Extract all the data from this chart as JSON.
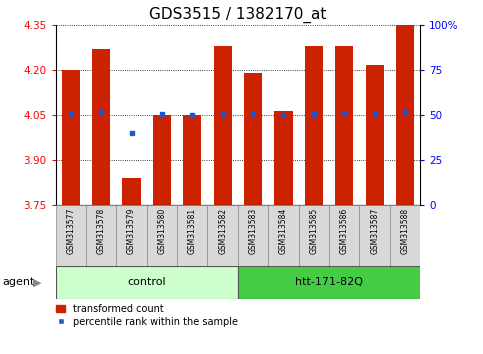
{
  "title": "GDS3515 / 1382170_at",
  "samples": [
    "GSM313577",
    "GSM313578",
    "GSM313579",
    "GSM313580",
    "GSM313581",
    "GSM313582",
    "GSM313583",
    "GSM313584",
    "GSM313585",
    "GSM313586",
    "GSM313587",
    "GSM313588"
  ],
  "bar_values": [
    4.2,
    4.27,
    3.84,
    4.05,
    4.05,
    4.28,
    4.19,
    4.065,
    4.28,
    4.28,
    4.215,
    4.35
  ],
  "percentile_values": [
    4.055,
    4.06,
    3.99,
    4.055,
    4.05,
    4.055,
    4.055,
    4.05,
    4.055,
    4.057,
    4.055,
    4.06
  ],
  "y_min": 3.75,
  "y_max": 4.35,
  "y_ticks": [
    3.75,
    3.9,
    4.05,
    4.2,
    4.35
  ],
  "right_y_ticks": [
    0,
    25,
    50,
    75,
    100
  ],
  "right_y_labels": [
    "0",
    "25",
    "50",
    "75",
    "100%"
  ],
  "bar_color": "#cc2200",
  "percentile_color": "#2255cc",
  "agent_groups": [
    {
      "label": "control",
      "start": 0,
      "end": 5,
      "color": "#ccffcc"
    },
    {
      "label": "htt-171-82Q",
      "start": 6,
      "end": 11,
      "color": "#44cc44"
    }
  ],
  "xlabel_agent": "agent",
  "legend_bar": "transformed count",
  "legend_pct": "percentile rank within the sample",
  "title_fontsize": 11,
  "tick_fontsize": 7.5,
  "label_fontsize": 7.5,
  "bar_width": 0.6
}
